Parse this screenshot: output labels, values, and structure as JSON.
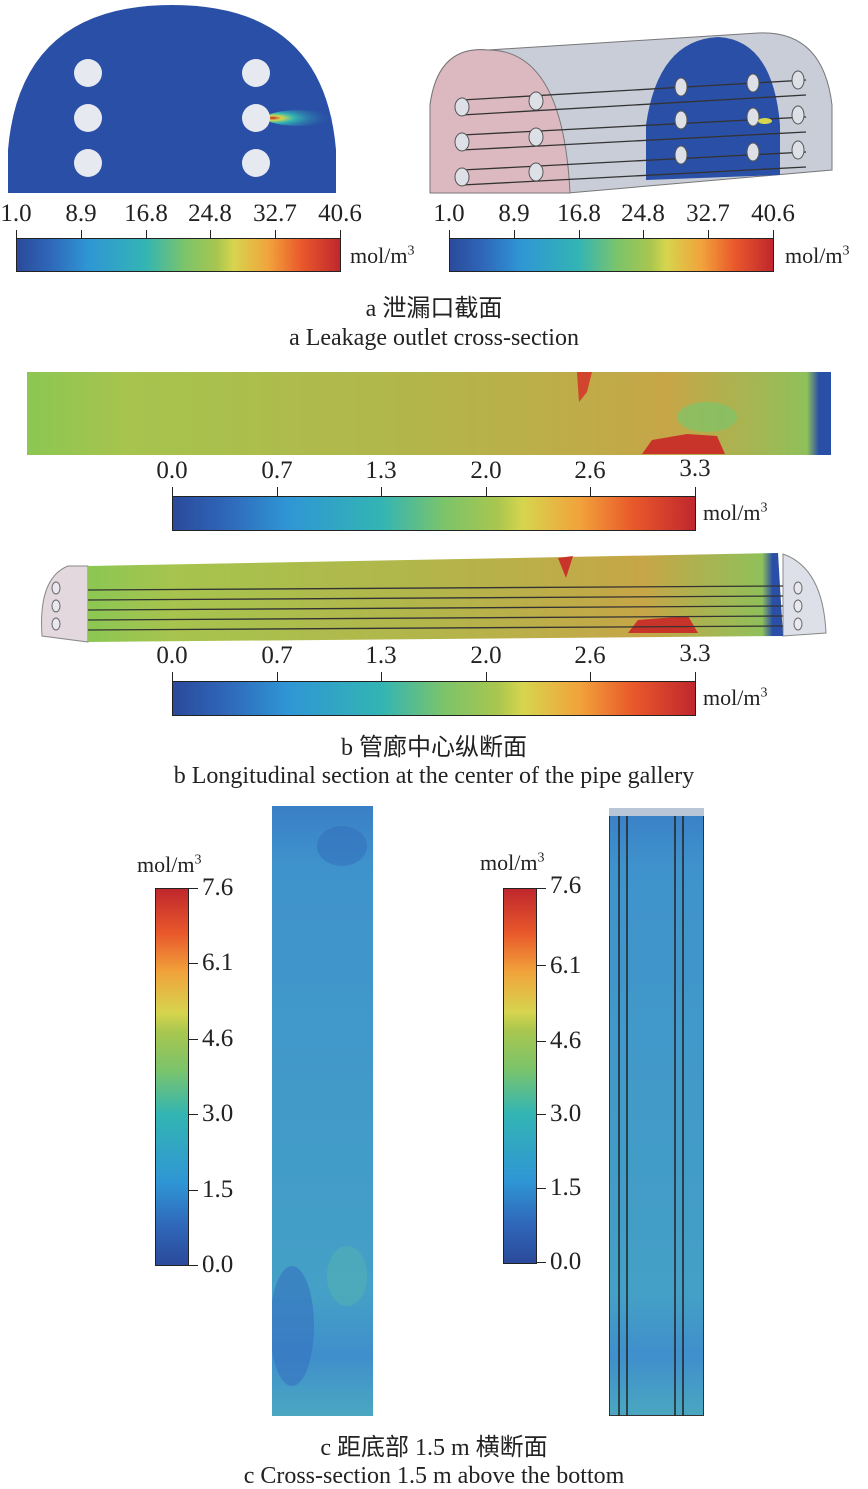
{
  "panel_a": {
    "colorbar_ticks": [
      "1.0",
      "8.9",
      "16.8",
      "24.8",
      "32.7",
      "40.6"
    ],
    "unit": "mol/m",
    "unit_sup": "3",
    "caption_cn": "a  泄漏口截面",
    "caption_en": "a   Leakage outlet cross-section"
  },
  "panel_b": {
    "colorbar_ticks": [
      "0.0",
      "0.7",
      "1.3",
      "2.0",
      "2.6",
      "3.3"
    ],
    "unit": "mol/m",
    "unit_sup": "3",
    "caption_cn": "b  管廊中心纵断面",
    "caption_en": "b  Longitudinal section at the center of the pipe gallery"
  },
  "panel_c": {
    "colorbar_ticks": [
      "7.6",
      "6.1",
      "4.6",
      "3.0",
      "1.5",
      "0.0"
    ],
    "unit": "mol/m",
    "unit_sup": "3",
    "caption_cn": "c  距底部 1.5 m 横断面",
    "caption_en": "c  Cross-section 1.5 m above the bottom"
  },
  "colors": {
    "field_blue": "#2a4fa6",
    "field_green": "#a9bd4e",
    "field_cyan": "#3f93cc"
  }
}
